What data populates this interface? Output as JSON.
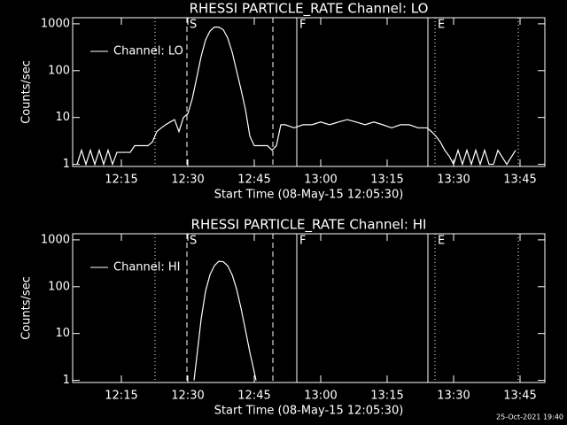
{
  "chart_data": [
    {
      "type": "line",
      "title": "RHESSI PARTICLE_RATE Channel: LO",
      "xlabel": "Start Time (08-May-15 12:05:30)",
      "ylabel": "Counts/sec",
      "log_y": true,
      "xlim": [
        4,
        110.6
      ],
      "ylim": [
        0.9,
        1350
      ],
      "xticks": [
        {
          "value": 15,
          "label": "12:15"
        },
        {
          "value": 30,
          "label": "12:30"
        },
        {
          "value": 45,
          "label": "12:45"
        },
        {
          "value": 60,
          "label": "13:00"
        },
        {
          "value": 75,
          "label": "13:15"
        },
        {
          "value": 90,
          "label": "13:30"
        },
        {
          "value": 105,
          "label": "13:45"
        }
      ],
      "yticks": [
        1,
        10,
        100,
        1000
      ],
      "markers": [
        {
          "x": 22.6,
          "style": "dotted"
        },
        {
          "x": 29.8,
          "style": "dashed",
          "label": "S"
        },
        {
          "x": 49.2,
          "style": "dashed"
        },
        {
          "x": 54.6,
          "style": "solid",
          "label": "F"
        },
        {
          "x": 84.2,
          "style": "solid"
        },
        {
          "x": 85.8,
          "style": "dotted",
          "label": "E"
        },
        {
          "x": 104.6,
          "style": "dotted"
        }
      ],
      "legend": "upper left",
      "x": [
        5,
        6,
        7,
        8,
        9,
        10,
        11,
        12,
        13,
        14,
        15,
        16,
        17,
        18,
        19,
        20,
        21,
        22,
        23,
        24,
        25,
        26,
        27,
        28,
        29,
        30,
        31,
        32,
        33,
        34,
        35,
        36,
        37,
        38,
        39,
        40,
        41,
        42,
        43,
        44,
        45,
        46,
        47,
        48,
        49,
        50,
        51,
        52,
        54,
        56,
        58,
        60,
        62,
        64,
        66,
        68,
        70,
        72,
        74,
        76,
        78,
        80,
        82,
        84,
        85,
        86,
        87,
        88,
        89,
        90,
        91,
        92,
        93,
        94,
        95,
        96,
        97,
        98,
        99,
        100,
        102,
        104
      ],
      "series": [
        {
          "name": "Channel: LO",
          "color": "#ffffff",
          "values": [
            1,
            2,
            1,
            2,
            1,
            2,
            1,
            2,
            1,
            1.8,
            1.8,
            1.8,
            1.8,
            2.5,
            2.5,
            2.5,
            2.5,
            3,
            5,
            6,
            7,
            8,
            9,
            5,
            10,
            12,
            25,
            70,
            200,
            450,
            700,
            850,
            850,
            750,
            500,
            250,
            100,
            40,
            15,
            4,
            2.5,
            2.5,
            2.5,
            2.5,
            2,
            2.5,
            7,
            7,
            6,
            7,
            7,
            8,
            7,
            8,
            9,
            8,
            7,
            8,
            7,
            6,
            7,
            7,
            6,
            6,
            5,
            4,
            3,
            2,
            1.5,
            1,
            2,
            1,
            2,
            1,
            2,
            1,
            2,
            1,
            1,
            2,
            1,
            2
          ]
        }
      ]
    },
    {
      "type": "line",
      "title": "RHESSI PARTICLE_RATE Channel: HI",
      "xlabel": "Start Time (08-May-15 12:05:30)",
      "ylabel": "Counts/sec",
      "log_y": true,
      "xlim": [
        4,
        110.6
      ],
      "ylim": [
        0.9,
        1350
      ],
      "xticks": [
        {
          "value": 15,
          "label": "12:15"
        },
        {
          "value": 30,
          "label": "12:30"
        },
        {
          "value": 45,
          "label": "12:45"
        },
        {
          "value": 60,
          "label": "13:00"
        },
        {
          "value": 75,
          "label": "13:15"
        },
        {
          "value": 90,
          "label": "13:30"
        },
        {
          "value": 105,
          "label": "13:45"
        }
      ],
      "yticks": [
        1,
        10,
        100,
        1000
      ],
      "markers": [
        {
          "x": 22.6,
          "style": "dotted"
        },
        {
          "x": 29.8,
          "style": "dashed",
          "label": "S"
        },
        {
          "x": 49.2,
          "style": "dashed"
        },
        {
          "x": 54.6,
          "style": "solid",
          "label": "F"
        },
        {
          "x": 84.2,
          "style": "solid"
        },
        {
          "x": 85.8,
          "style": "dotted",
          "label": "E"
        },
        {
          "x": 104.6,
          "style": "dotted"
        }
      ],
      "legend": "upper left",
      "x": [
        31.4,
        32,
        33,
        34,
        35,
        36,
        37,
        38,
        39,
        40,
        41,
        42,
        43,
        44,
        45,
        45.4
      ],
      "series": [
        {
          "name": "Channel: HI",
          "color": "#ffffff",
          "values": [
            1,
            3,
            20,
            80,
            180,
            280,
            350,
            340,
            280,
            180,
            90,
            35,
            12,
            4,
            1.5,
            1
          ]
        }
      ]
    }
  ],
  "footer": "25-Oct-2021 19:40"
}
